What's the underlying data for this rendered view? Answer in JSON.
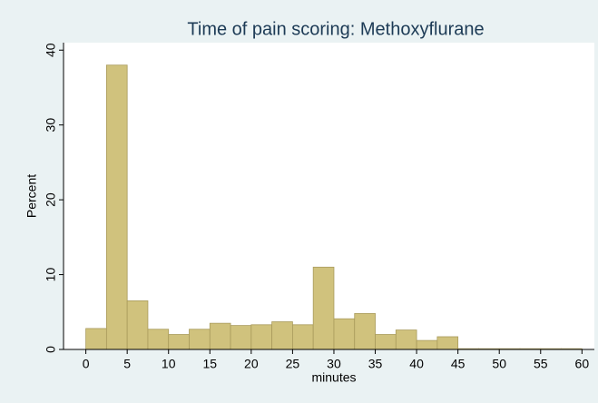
{
  "chart_data": {
    "type": "histogram",
    "title": "Time of pain scoring: Methoxyflurane",
    "x_label": "minutes",
    "y_label": "Percent",
    "bins": [
      0,
      2.5,
      5,
      7.5,
      10,
      12.5,
      15,
      17.5,
      20,
      22.5,
      25,
      27.5,
      30,
      32.5,
      35,
      37.5,
      40,
      42.5,
      45,
      47.5,
      50,
      52.5,
      55,
      57.5,
      60
    ],
    "values": [
      2.8,
      38,
      6.5,
      2.7,
      2.0,
      2.7,
      3.5,
      3.2,
      3.3,
      3.7,
      3.3,
      11,
      4.1,
      4.8,
      2.0,
      2.6,
      1.2,
      1.7,
      0.1,
      0.1,
      0.1,
      0.1,
      0.1,
      0.1
    ],
    "color": "#d0c27d",
    "xlim": [
      -2.7,
      61.5
    ],
    "ylim": [
      0,
      41
    ],
    "xticks": [
      0,
      5,
      10,
      15,
      20,
      25,
      30,
      35,
      40,
      45,
      50,
      55,
      60
    ],
    "yticks": [
      0,
      10,
      20,
      30,
      40
    ],
    "grid": false
  }
}
